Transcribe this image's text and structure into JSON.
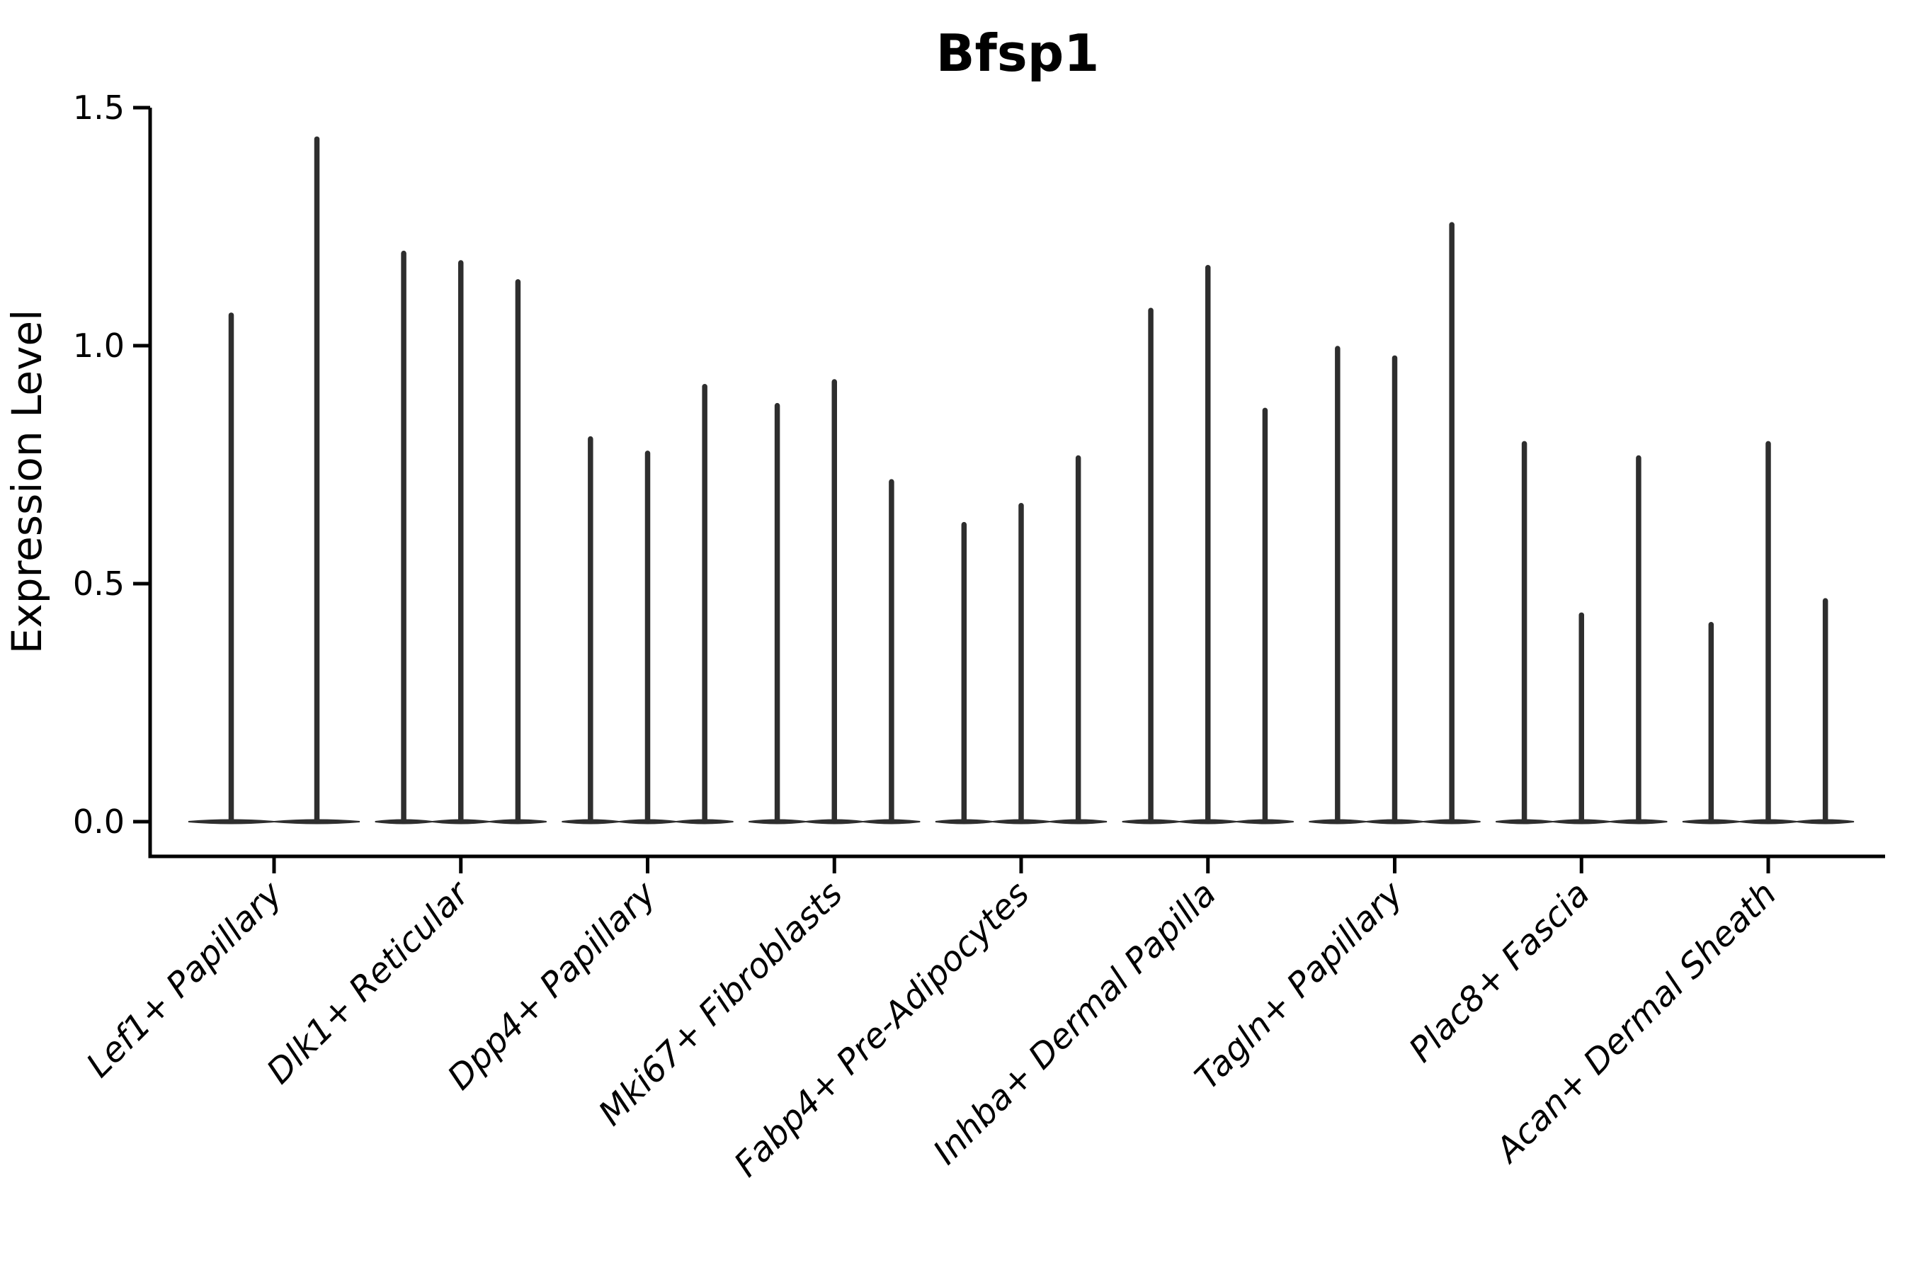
{
  "chart_data": {
    "type": "violin",
    "title": "Bfsp1",
    "xlabel": "",
    "ylabel": "Expression Level",
    "ytick_labels": [
      "0.0",
      "0.5",
      "1.0",
      "1.5"
    ],
    "ytick_values": [
      0.0,
      0.5,
      1.0,
      1.5
    ],
    "ylim": [
      -0.073,
      1.5
    ],
    "grid": false,
    "legend": "none",
    "background_color": "#ffffff",
    "axis_color": "#000000",
    "violin_color": "#2e2e2e",
    "violin_shape_note": "each violin is a flat density mass at expression level 0 with one narrow spike rising to its max expression value",
    "categories": [
      "Lef1+ Papillary",
      "Dlk1+ Reticular",
      "Dpp4+ Papillary",
      "Mki67+ Fibroblasts",
      "Fabp4+ Pre-Adipocytes",
      "Inhba+ Dermal Papilla",
      "Tagln+ Papillary",
      "Plac8+ Fascia",
      "Acan+ Dermal Sheath"
    ],
    "violin_peak_values": [
      [
        1.07,
        1.44
      ],
      [
        1.2,
        1.18,
        1.14
      ],
      [
        0.81,
        0.78,
        0.92
      ],
      [
        0.88,
        0.93,
        0.72
      ],
      [
        0.63,
        0.67,
        0.77
      ],
      [
        1.08,
        1.17,
        0.87
      ],
      [
        1.0,
        0.98,
        1.26
      ],
      [
        0.8,
        0.44,
        0.77
      ],
      [
        0.42,
        0.8,
        0.47
      ]
    ]
  }
}
